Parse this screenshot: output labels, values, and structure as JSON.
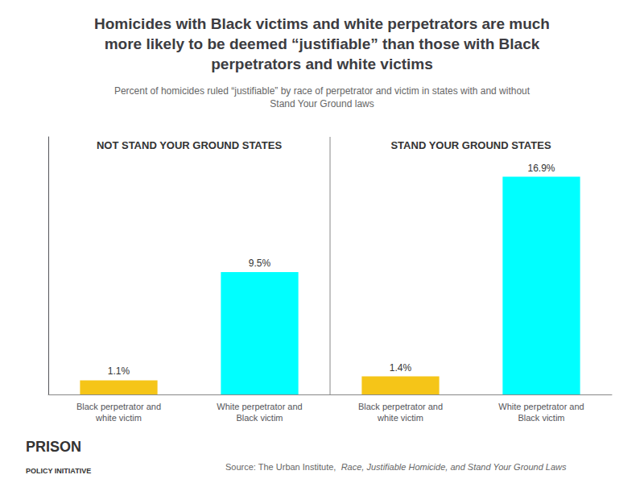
{
  "chart_data": {
    "type": "bar",
    "title": "Homicides with Black victims and white perpetrators are much\nmore likely to be deemed “justifiable” than those with Black\nperpetrators and white victims",
    "subtitle": "Percent of homicides ruled “justifiable” by race of perpetrator and victim in states with and without\nStand Your Ground laws",
    "group_labels": [
      "NOT STAND YOUR GROUND STATES",
      "STAND YOUR GROUND STATES"
    ],
    "categories": [
      "Black perpetrator and\nwhite victim",
      "White perpetrator and\nBlack victim",
      "Black perpetrator and\nwhite victim",
      "White perpetrator and\nBlack victim"
    ],
    "values": [
      1.1,
      9.5,
      1.4,
      16.9
    ],
    "value_labels": [
      "1.1%",
      "9.5%",
      "1.4%",
      "16.9%"
    ],
    "colors": [
      "#F5C518",
      "#00FFFF",
      "#F5C518",
      "#00FFFF"
    ],
    "data_labels": true,
    "ylim": [
      0,
      20
    ],
    "tick_labels": "x",
    "grid": false,
    "source": [
      "Source: The Urban Institute,",
      "Race, Justifiable Homicide, and Stand Your Ground Laws"
    ],
    "annotations": [
      "PRISON",
      "POLICY INITIATIVE"
    ]
  }
}
